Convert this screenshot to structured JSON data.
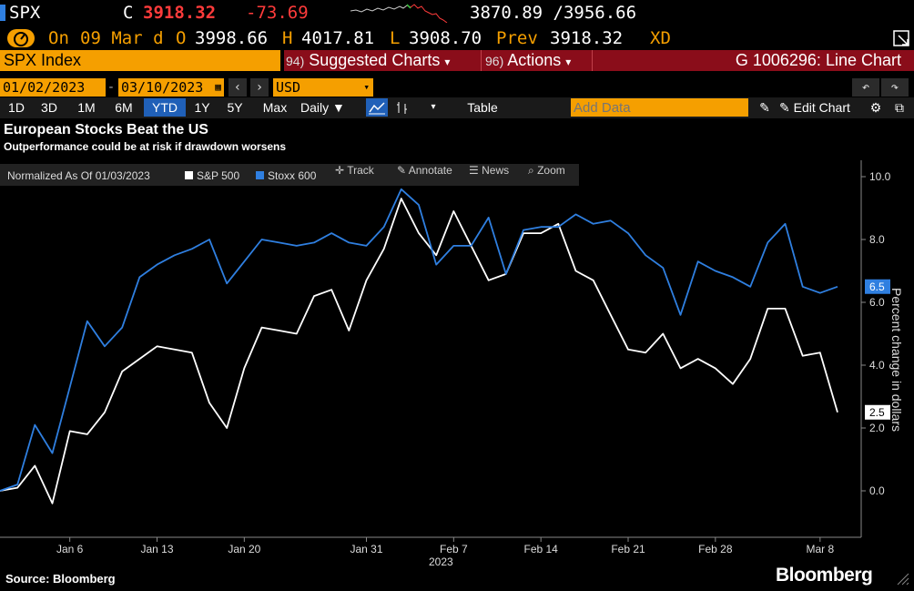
{
  "header": {
    "ticker": "SPX",
    "close_label": "C",
    "close_value": "3918.32",
    "change": "-73.69",
    "range": "3870.89 /3956.66",
    "on_label": "On",
    "date": "09 Mar d",
    "open_label": "O",
    "open_value": "3998.66",
    "high_label": "H",
    "high_value": "4017.81",
    "low_label": "L",
    "low_value": "3908.70",
    "prev_label": "Prev",
    "prev_value": "3918.32",
    "xd": "XD"
  },
  "toolbar": {
    "security": "SPX Index",
    "suggested_num": "94)",
    "suggested_label": "Suggested Charts",
    "actions_num": "96)",
    "actions_label": "Actions",
    "chart_id": "G 1006296: Line Chart",
    "start_date": "01/02/2023",
    "end_date": "03/10/2023",
    "currency": "USD",
    "periods": [
      "1D",
      "3D",
      "1M",
      "6M",
      "YTD",
      "1Y",
      "5Y",
      "Max"
    ],
    "active_period": "YTD",
    "frequency": "Daily",
    "table_label": "Table",
    "add_data_placeholder": "Add Data",
    "edit_chart_label": "Edit Chart"
  },
  "legend_bar": {
    "normalized": "Normalized As Of 01/03/2023",
    "track": "Track",
    "annotate": "Annotate",
    "news": "News",
    "zoom": "Zoom"
  },
  "footer": {
    "source": "Source: Bloomberg",
    "brand": "Bloomberg"
  },
  "colors": {
    "orange": "#f59f00",
    "red_bar": "#8a0d1a",
    "blue_series": "#2f7fe0",
    "white_series": "#ffffff",
    "negative": "#ff3b3b"
  },
  "chart_data": {
    "type": "line",
    "title": "European Stocks Beat the US",
    "subtitle": "Outperformance could be at risk if drawdown worsens",
    "ylabel": "Percent change in dollars",
    "xlabel": "2023",
    "ylim": [
      -1.5,
      10.5
    ],
    "yticks": [
      "0.0",
      "2.0",
      "4.0",
      "6.0",
      "8.0",
      "10.0"
    ],
    "x_ticks": [
      "Jan 6",
      "Jan 13",
      "Jan 20",
      "Jan 31",
      "Feb 7",
      "Feb 14",
      "Feb 21",
      "Feb 28",
      "Mar 8"
    ],
    "x_sub_label": "2023",
    "legend_position": "top-left",
    "series": [
      {
        "name": "S&P 500",
        "color": "#ffffff",
        "last_label": "2.5",
        "values": [
          0.0,
          0.1,
          0.8,
          -0.4,
          1.9,
          1.8,
          2.5,
          3.8,
          4.2,
          4.6,
          4.5,
          4.4,
          2.8,
          2.0,
          3.9,
          5.2,
          5.1,
          5.0,
          6.2,
          6.4,
          5.1,
          6.7,
          7.7,
          9.3,
          8.2,
          7.5,
          8.9,
          7.8,
          6.7,
          6.9,
          8.2,
          8.2,
          8.5,
          7.0,
          6.7,
          5.6,
          4.5,
          4.4,
          5.0,
          3.9,
          4.2,
          3.9,
          3.4,
          4.2,
          5.8,
          5.8,
          4.3,
          4.4,
          2.5
        ],
        "dates": [
          "01/02",
          "01/03",
          "01/04",
          "01/05",
          "01/06",
          "01/09",
          "01/10",
          "01/11",
          "01/12",
          "01/13",
          "01/16",
          "01/17",
          "01/18",
          "01/19",
          "01/20",
          "01/23",
          "01/24",
          "01/25",
          "01/26",
          "01/27",
          "01/30",
          "01/31",
          "02/01",
          "02/02",
          "02/03",
          "02/06",
          "02/07",
          "02/08",
          "02/09",
          "02/10",
          "02/13",
          "02/14",
          "02/15",
          "02/16",
          "02/17",
          "02/20",
          "02/21",
          "02/22",
          "02/23",
          "02/24",
          "02/27",
          "02/28",
          "03/01",
          "03/02",
          "03/03",
          "03/06",
          "03/07",
          "03/08",
          "03/09"
        ]
      },
      {
        "name": "Stoxx 600",
        "color": "#2f7fe0",
        "last_label": "6.5",
        "values": [
          0.0,
          0.2,
          2.1,
          1.2,
          3.3,
          5.4,
          4.6,
          5.2,
          6.8,
          7.2,
          7.5,
          7.7,
          8.0,
          6.6,
          7.3,
          8.0,
          7.9,
          7.8,
          7.9,
          8.2,
          7.9,
          7.8,
          8.4,
          9.6,
          9.1,
          7.2,
          7.8,
          7.8,
          8.7,
          6.9,
          8.3,
          8.4,
          8.4,
          8.8,
          8.5,
          8.6,
          8.2,
          7.5,
          7.1,
          5.6,
          7.3,
          7.0,
          6.8,
          6.5,
          7.9,
          8.5,
          6.5,
          6.3,
          6.5
        ],
        "dates": []
      }
    ]
  }
}
